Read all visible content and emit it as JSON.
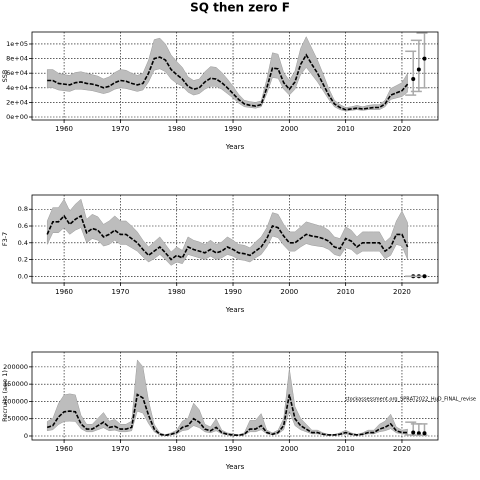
{
  "chart_data": [
    {
      "type": "line",
      "title": "SQ then zero F",
      "x_label": "Years",
      "y_label": "SSB",
      "color": "#000000",
      "band_color": "#bdbdbd",
      "grid": true,
      "xlim": [
        1954.3,
        2026.4
      ],
      "xticks": [
        1960,
        1970,
        1980,
        1990,
        2000,
        2010,
        2020
      ],
      "ylim": [
        -4100,
        116400
      ],
      "yticks": [
        {
          "value": 0,
          "label": "0e+00"
        },
        {
          "value": 20000,
          "label": "2e+04"
        },
        {
          "value": 40000,
          "label": "4e+04"
        },
        {
          "value": 60000,
          "label": "6e+04"
        },
        {
          "value": 80000,
          "label": "8e+04"
        },
        {
          "value": 100000,
          "label": "1e+05"
        }
      ],
      "x": [
        1957,
        1958,
        1959,
        1960,
        1961,
        1962,
        1963,
        1964,
        1965,
        1966,
        1967,
        1968,
        1969,
        1970,
        1971,
        1972,
        1973,
        1974,
        1975,
        1976,
        1977,
        1978,
        1979,
        1980,
        1981,
        1982,
        1983,
        1984,
        1985,
        1986,
        1987,
        1988,
        1989,
        1990,
        1991,
        1992,
        1993,
        1994,
        1995,
        1996,
        1997,
        1998,
        1999,
        2000,
        2001,
        2002,
        2003,
        2004,
        2005,
        2006,
        2007,
        2008,
        2009,
        2010,
        2011,
        2012,
        2013,
        2014,
        2015,
        2016,
        2017,
        2018,
        2019,
        2020,
        2021
      ],
      "values": [
        50000,
        50000,
        46000,
        45000,
        44000,
        47000,
        48000,
        46000,
        45000,
        43000,
        40000,
        42000,
        47000,
        50000,
        49000,
        46000,
        44000,
        46000,
        60000,
        80000,
        82000,
        78000,
        65000,
        58000,
        52000,
        42000,
        38000,
        40000,
        48000,
        53000,
        52000,
        47000,
        40000,
        32000,
        24000,
        18000,
        16000,
        15000,
        17000,
        40000,
        67000,
        66000,
        47000,
        38000,
        48000,
        72000,
        85000,
        72000,
        60000,
        45000,
        30000,
        18000,
        13000,
        10000,
        11000,
        12000,
        11000,
        12000,
        13000,
        13000,
        18000,
        30000,
        33000,
        36000,
        45000
      ],
      "lower": [
        40000,
        40000,
        37000,
        36000,
        35000,
        38000,
        38000,
        37000,
        36000,
        34000,
        32000,
        34000,
        38000,
        40000,
        39000,
        37000,
        35000,
        37000,
        48000,
        64000,
        66000,
        62000,
        52000,
        46000,
        42000,
        34000,
        30000,
        32000,
        38000,
        42000,
        42000,
        38000,
        32000,
        26000,
        19000,
        14000,
        13000,
        12000,
        14000,
        32000,
        54000,
        53000,
        38000,
        30000,
        38000,
        58000,
        68000,
        58000,
        48000,
        36000,
        24000,
        14000,
        10000,
        8000,
        9000,
        10000,
        9000,
        10000,
        10000,
        10000,
        14000,
        24000,
        26000,
        28000,
        34000
      ],
      "upper": [
        65000,
        65000,
        60000,
        58000,
        57000,
        61000,
        62000,
        60000,
        58000,
        56000,
        52000,
        55000,
        61000,
        65000,
        64000,
        60000,
        57000,
        60000,
        78000,
        106000,
        108000,
        100000,
        85000,
        76000,
        68000,
        55000,
        50000,
        52000,
        62000,
        69000,
        68000,
        61000,
        52000,
        42000,
        31000,
        23000,
        21000,
        20000,
        22000,
        52000,
        88000,
        86000,
        61000,
        50000,
        63000,
        94000,
        110000,
        94000,
        78000,
        59000,
        39000,
        23000,
        17000,
        13000,
        14000,
        16000,
        14000,
        16000,
        17000,
        17000,
        23000,
        39000,
        43000,
        47000,
        60000
      ],
      "projection": {
        "x": [
          2022,
          2023,
          2024
        ],
        "values": [
          52000,
          65000,
          80000
        ],
        "lower": [
          30000,
          35000,
          40000
        ],
        "upper": [
          90000,
          105000,
          115000
        ]
      }
    },
    {
      "type": "line",
      "x_label": "Years",
      "y_label": "F3-7",
      "color": "#000000",
      "band_color": "#bdbdbd",
      "grid": true,
      "xlim": [
        1954.3,
        2026.4
      ],
      "xticks": [
        1960,
        1970,
        1980,
        1990,
        2000,
        2010,
        2020
      ],
      "ylim": [
        -0.08,
        0.97
      ],
      "yticks": [
        {
          "value": 0,
          "label": "0.0"
        },
        0.2,
        0.4,
        0.6,
        0.8
      ],
      "x": [
        1957,
        1958,
        1959,
        1960,
        1961,
        1962,
        1963,
        1964,
        1965,
        1966,
        1967,
        1968,
        1969,
        1970,
        1971,
        1972,
        1973,
        1974,
        1975,
        1976,
        1977,
        1978,
        1979,
        1980,
        1981,
        1982,
        1983,
        1984,
        1985,
        1986,
        1987,
        1988,
        1989,
        1990,
        1991,
        1992,
        1993,
        1994,
        1995,
        1996,
        1997,
        1998,
        1999,
        2000,
        2001,
        2002,
        2003,
        2004,
        2005,
        2006,
        2007,
        2008,
        2009,
        2010,
        2011,
        2012,
        2013,
        2014,
        2015,
        2016,
        2017,
        2018,
        2019,
        2020,
        2021
      ],
      "values": [
        0.5,
        0.65,
        0.65,
        0.72,
        0.62,
        0.68,
        0.72,
        0.52,
        0.57,
        0.55,
        0.47,
        0.5,
        0.55,
        0.5,
        0.5,
        0.45,
        0.4,
        0.32,
        0.25,
        0.3,
        0.35,
        0.28,
        0.2,
        0.25,
        0.22,
        0.35,
        0.32,
        0.3,
        0.28,
        0.32,
        0.28,
        0.3,
        0.35,
        0.32,
        0.28,
        0.27,
        0.25,
        0.3,
        0.35,
        0.45,
        0.6,
        0.58,
        0.48,
        0.4,
        0.4,
        0.45,
        0.5,
        0.48,
        0.47,
        0.45,
        0.42,
        0.35,
        0.33,
        0.45,
        0.42,
        0.35,
        0.4,
        0.4,
        0.4,
        0.4,
        0.3,
        0.35,
        0.5,
        0.5,
        0.35
      ],
      "lower": [
        0.38,
        0.52,
        0.52,
        0.58,
        0.5,
        0.55,
        0.58,
        0.4,
        0.45,
        0.43,
        0.36,
        0.38,
        0.43,
        0.38,
        0.38,
        0.34,
        0.3,
        0.23,
        0.17,
        0.21,
        0.26,
        0.2,
        0.13,
        0.17,
        0.15,
        0.26,
        0.24,
        0.22,
        0.2,
        0.24,
        0.2,
        0.22,
        0.26,
        0.24,
        0.2,
        0.19,
        0.17,
        0.22,
        0.26,
        0.35,
        0.48,
        0.46,
        0.37,
        0.3,
        0.3,
        0.35,
        0.39,
        0.37,
        0.36,
        0.35,
        0.32,
        0.26,
        0.24,
        0.34,
        0.32,
        0.26,
        0.3,
        0.3,
        0.3,
        0.3,
        0.21,
        0.25,
        0.38,
        0.36,
        0.2
      ],
      "upper": [
        0.66,
        0.82,
        0.82,
        0.92,
        0.78,
        0.86,
        0.92,
        0.68,
        0.74,
        0.71,
        0.62,
        0.66,
        0.72,
        0.66,
        0.66,
        0.6,
        0.53,
        0.43,
        0.35,
        0.41,
        0.47,
        0.38,
        0.29,
        0.35,
        0.31,
        0.47,
        0.43,
        0.41,
        0.38,
        0.43,
        0.38,
        0.41,
        0.47,
        0.43,
        0.38,
        0.37,
        0.34,
        0.41,
        0.47,
        0.58,
        0.76,
        0.74,
        0.62,
        0.53,
        0.53,
        0.59,
        0.65,
        0.63,
        0.61,
        0.59,
        0.55,
        0.47,
        0.45,
        0.59,
        0.55,
        0.47,
        0.53,
        0.53,
        0.53,
        0.53,
        0.41,
        0.47,
        0.66,
        0.78,
        0.64
      ],
      "projection": {
        "x": [
          2022,
          2023,
          2024
        ],
        "values": [
          0,
          0,
          0
        ],
        "lower": [
          0,
          0,
          0
        ],
        "upper": [
          0,
          0,
          0
        ]
      }
    },
    {
      "type": "line",
      "x_label": "Years",
      "y_label": "Recruits (age 1)",
      "annotation": "stockassessment.org_SPRAT2022_HuD_FINAL_revise",
      "color": "#000000",
      "band_color": "#bdbdbd",
      "grid": true,
      "xlim": [
        1954.3,
        2026.4
      ],
      "xticks": [
        1960,
        1970,
        1980,
        1990,
        2000,
        2010,
        2020
      ],
      "ylim": [
        -11600,
        243000
      ],
      "yticks": [
        0,
        50000,
        100000,
        150000,
        200000
      ],
      "x": [
        1957,
        1958,
        1959,
        1960,
        1961,
        1962,
        1963,
        1964,
        1965,
        1966,
        1967,
        1968,
        1969,
        1970,
        1971,
        1972,
        1973,
        1974,
        1975,
        1976,
        1977,
        1978,
        1979,
        1980,
        1981,
        1982,
        1983,
        1984,
        1985,
        1986,
        1987,
        1988,
        1989,
        1990,
        1991,
        1992,
        1993,
        1994,
        1995,
        1996,
        1997,
        1998,
        1999,
        2000,
        2001,
        2002,
        2003,
        2004,
        2005,
        2006,
        2007,
        2008,
        2009,
        2010,
        2011,
        2012,
        2013,
        2014,
        2015,
        2016,
        2017,
        2018,
        2019,
        2020,
        2021
      ],
      "values": [
        25000,
        30000,
        55000,
        70000,
        72000,
        70000,
        35000,
        20000,
        20000,
        30000,
        40000,
        25000,
        28000,
        20000,
        20000,
        25000,
        120000,
        110000,
        60000,
        20000,
        5000,
        2000,
        5000,
        10000,
        25000,
        30000,
        50000,
        40000,
        20000,
        15000,
        25000,
        10000,
        5000,
        3000,
        2000,
        5000,
        20000,
        20000,
        30000,
        10000,
        5000,
        10000,
        30000,
        120000,
        50000,
        30000,
        20000,
        10000,
        10000,
        5000,
        3000,
        3000,
        5000,
        10000,
        5000,
        3000,
        5000,
        10000,
        10000,
        20000,
        25000,
        35000,
        15000,
        10000,
        10000
      ],
      "lower": [
        15000,
        18000,
        33000,
        42000,
        43000,
        42000,
        21000,
        12000,
        12000,
        18000,
        24000,
        15000,
        17000,
        12000,
        12000,
        15000,
        72000,
        66000,
        36000,
        12000,
        3000,
        1000,
        3000,
        6000,
        15000,
        18000,
        30000,
        24000,
        12000,
        9000,
        15000,
        6000,
        3000,
        2000,
        1000,
        3000,
        12000,
        12000,
        18000,
        6000,
        3000,
        6000,
        18000,
        72000,
        30000,
        18000,
        12000,
        6000,
        6000,
        3000,
        2000,
        2000,
        3000,
        6000,
        3000,
        2000,
        3000,
        6000,
        6000,
        12000,
        15000,
        21000,
        9000,
        6000,
        5000
      ],
      "upper": [
        42000,
        51000,
        94000,
        119000,
        122000,
        119000,
        60000,
        34000,
        34000,
        51000,
        68000,
        43000,
        48000,
        34000,
        34000,
        43000,
        220000,
        200000,
        102000,
        34000,
        9000,
        4000,
        9000,
        17000,
        43000,
        51000,
        95000,
        76000,
        34000,
        26000,
        50000,
        17000,
        9000,
        6000,
        4000,
        9000,
        45000,
        45000,
        65000,
        17000,
        9000,
        17000,
        51000,
        195000,
        85000,
        51000,
        34000,
        17000,
        17000,
        9000,
        5000,
        5000,
        9000,
        17000,
        9000,
        5000,
        9000,
        17000,
        17000,
        34000,
        43000,
        63000,
        26000,
        17000,
        20000
      ],
      "projection": {
        "x": [
          2022,
          2023,
          2024
        ],
        "values": [
          10000,
          8000,
          8000
        ],
        "lower": [
          3000,
          2000,
          2000
        ],
        "upper": [
          40000,
          35000,
          35000
        ]
      }
    }
  ]
}
